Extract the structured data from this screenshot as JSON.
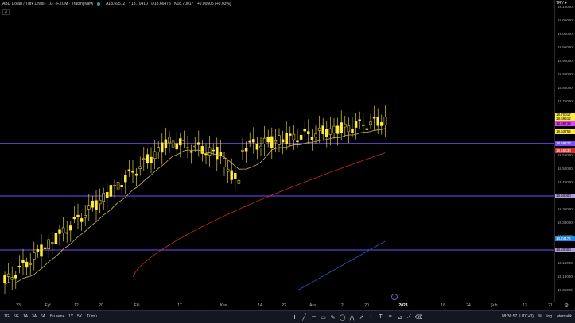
{
  "legend": {
    "title": "ABD Doları / Türk Lirası · 1G · FXCM · TradingView",
    "open": "A18.69512",
    "high": "Y18.70410",
    "low": "D18.66475",
    "close": "K18.70017",
    "change": "+0.00505 (+0.03%)",
    "sub": "3"
  },
  "currency": "TRY ▾",
  "y_axis": {
    "labels": [
      {
        "text": "19.10000",
        "price": 19.1
      },
      {
        "text": "19.05000",
        "price": 19.05
      },
      {
        "text": "19.00000",
        "price": 19.0
      },
      {
        "text": "18.95000",
        "price": 18.95
      },
      {
        "text": "18.90000",
        "price": 18.9
      },
      {
        "text": "18.85000",
        "price": 18.85
      },
      {
        "text": "18.80000",
        "price": 18.8
      },
      {
        "text": "18.75000",
        "price": 18.75
      },
      {
        "text": "18.55000",
        "price": 18.55
      },
      {
        "text": "18.50000",
        "price": 18.5
      },
      {
        "text": "18.45000",
        "price": 18.45
      },
      {
        "text": "18.35000",
        "price": 18.35
      },
      {
        "text": "18.30000",
        "price": 18.3
      },
      {
        "text": "18.25000",
        "price": 18.25
      },
      {
        "text": "18.15000",
        "price": 18.15
      },
      {
        "text": "18.10000",
        "price": 18.1
      },
      {
        "text": "18.05000",
        "price": 18.05
      }
    ],
    "tags": [
      {
        "text": "18.70017",
        "price": 18.70017,
        "bg": "#ffeb3b"
      },
      {
        "text": "18.69512",
        "price": 18.686,
        "bg": "#ffeb3b"
      },
      {
        "text": "18.66739",
        "price": 18.667,
        "bg": "#e040fb"
      },
      {
        "text": "18.63754",
        "price": 18.6375,
        "bg": "#ffeb3b"
      },
      {
        "text": "18.59478",
        "price": 18.59478,
        "bg": "#7c4dff"
      },
      {
        "text": "18.56638",
        "price": 18.56638,
        "bg": "#d32f2f"
      },
      {
        "text": "18.40000",
        "price": 18.4,
        "bg": "#b39ddb"
      },
      {
        "text": "18.24172",
        "price": 18.24172,
        "bg": "#1e88e5"
      },
      {
        "text": "18.20000",
        "price": 18.2,
        "bg": "#b39ddb"
      }
    ]
  },
  "x_axis": [
    {
      "text": "23",
      "bold": false
    },
    {
      "text": "Eyl",
      "bold": false
    },
    {
      "text": "12",
      "bold": false
    },
    {
      "text": "20",
      "bold": false
    },
    {
      "text": "Eki",
      "bold": false
    },
    {
      "text": "17",
      "bold": false
    },
    {
      "text": "Kas",
      "bold": false
    },
    {
      "text": "14",
      "bold": false
    },
    {
      "text": "22",
      "bold": false
    },
    {
      "text": "Ara",
      "bold": false
    },
    {
      "text": "12",
      "bold": false
    },
    {
      "text": "20",
      "bold": false
    },
    {
      "text": "2023",
      "bold": true
    },
    {
      "text": "16",
      "bold": false
    },
    {
      "text": "24",
      "bold": false
    },
    {
      "text": "Şub",
      "bold": false
    },
    {
      "text": "13",
      "bold": false
    },
    {
      "text": "21",
      "bold": false
    }
  ],
  "horizontal_lines": [
    {
      "price": 18.59478,
      "color": "#7c4dff"
    },
    {
      "price": 18.4,
      "color": "#7c4dff"
    },
    {
      "price": 18.2,
      "color": "#7c4dff"
    }
  ],
  "timeframes": [
    "1G",
    "5G",
    "1A",
    "3A",
    "6A",
    "Bu sene",
    "1Y",
    "5Y",
    "Tümü"
  ],
  "status": {
    "time": "08:36:57 (UTC+3)",
    "percent": "%",
    "log": "log",
    "auto": "otomatik"
  },
  "colors": {
    "candle": "#ffeb3b",
    "ma_short": "#c8b560",
    "ma_mid": "#c62828",
    "ma_long": "#1565c0"
  }
}
